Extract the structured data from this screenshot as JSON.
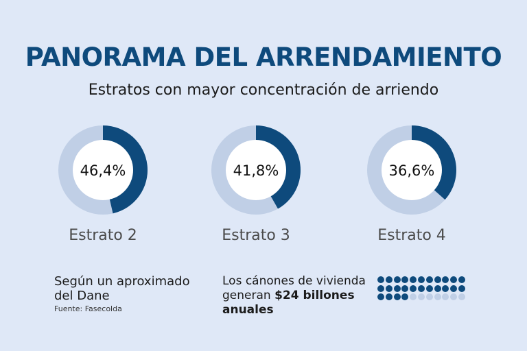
{
  "header": {
    "title": "PANORAMA DEL ARRENDAMIENTO",
    "subtitle": "Estratos con mayor concentración de arriendo"
  },
  "chart_data": {
    "type": "pie",
    "variant": "donut",
    "charts": [
      {
        "category": "Estrato 2",
        "value": 46.4,
        "label": "46,4%"
      },
      {
        "category": "Estrato 3",
        "value": 41.8,
        "label": "41,8%"
      },
      {
        "category": "Estrato 4",
        "value": 36.6,
        "label": "36,6%"
      }
    ],
    "colors": {
      "filled": "#0e4a7c",
      "remainder": "#c0cfe6",
      "center": "#ffffff"
    }
  },
  "notes": {
    "left_text": "Según un aproximado del Dane",
    "source": "Fuente: Fasecolda",
    "mid_prefix": "Los cánones de vivienda generan ",
    "mid_bold": "$24 billones anuales"
  },
  "dot_grid": {
    "rows": 3,
    "cols": 11,
    "filled_last_row": 4,
    "colors": {
      "filled": "#0e4a7c",
      "empty": "#c0cfe6"
    }
  }
}
